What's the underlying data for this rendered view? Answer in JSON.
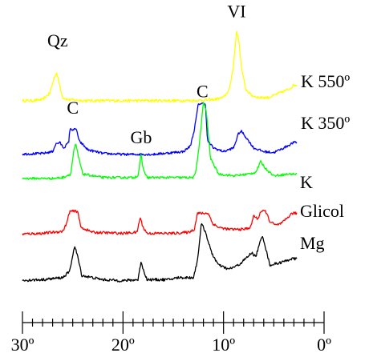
{
  "chart_data": {
    "type": "line",
    "title": "",
    "xlabel": "",
    "ylabel": "",
    "x_reversed": true,
    "xlim": [
      30,
      0
    ],
    "x_ticks": [
      {
        "value": 30,
        "label": "30º"
      },
      {
        "value": 20,
        "label": "20º"
      },
      {
        "value": 10,
        "label": "10º"
      },
      {
        "value": 0,
        "label": "0º"
      }
    ],
    "x_minor_tick_step": 1,
    "series": [
      {
        "name": "K 550º",
        "color": "#ffff00",
        "baseline": 0.5,
        "points": [
          [
            31,
            0.5
          ],
          [
            29,
            0.5
          ],
          [
            28,
            1
          ],
          [
            27.3,
            4
          ],
          [
            26.8,
            12
          ],
          [
            26.6,
            14
          ],
          [
            26.3,
            8
          ],
          [
            26,
            2
          ],
          [
            25.5,
            1
          ],
          [
            24,
            0.5
          ],
          [
            20,
            0.5
          ],
          [
            16,
            0.5
          ],
          [
            13,
            0.5
          ],
          [
            11,
            1
          ],
          [
            10,
            2
          ],
          [
            9.4,
            6
          ],
          [
            9.0,
            18
          ],
          [
            8.7,
            34
          ],
          [
            8.5,
            30
          ],
          [
            8.2,
            16
          ],
          [
            7.8,
            6
          ],
          [
            7.2,
            3
          ],
          [
            6.5,
            2
          ],
          [
            5.5,
            2
          ],
          [
            4.5,
            4
          ],
          [
            3.5,
            6
          ],
          [
            3,
            8
          ]
        ]
      },
      {
        "name": "K 350º",
        "color": "#0000ff",
        "baseline": 0.5,
        "points": [
          [
            31,
            0.5
          ],
          [
            28,
            1
          ],
          [
            27,
            2
          ],
          [
            26.7,
            6
          ],
          [
            26.3,
            7
          ],
          [
            25.9,
            4
          ],
          [
            25.4,
            7
          ],
          [
            25.3,
            14
          ],
          [
            24.6,
            14
          ],
          [
            24.4,
            8
          ],
          [
            23.5,
            3
          ],
          [
            22,
            1
          ],
          [
            20,
            0.5
          ],
          [
            17,
            0.5
          ],
          [
            15,
            1.5
          ],
          [
            14,
            2
          ],
          [
            13.3,
            5
          ],
          [
            12.9,
            14
          ],
          [
            12.5,
            28
          ],
          [
            12.3,
            28
          ],
          [
            11.8,
            28
          ],
          [
            11.6,
            8
          ],
          [
            11,
            4
          ],
          [
            10,
            2
          ],
          [
            9,
            4
          ],
          [
            8.5,
            12
          ],
          [
            8.2,
            13
          ],
          [
            7.8,
            10
          ],
          [
            7,
            4
          ],
          [
            6,
            2
          ],
          [
            5,
            1.5
          ],
          [
            4,
            4
          ],
          [
            3,
            7
          ]
        ]
      },
      {
        "name": "K",
        "color": "#00ff00",
        "baseline": 0.5,
        "points": [
          [
            31,
            0.5
          ],
          [
            27,
            0.5
          ],
          [
            26,
            1
          ],
          [
            25.2,
            3
          ],
          [
            24.9,
            16
          ],
          [
            24.7,
            20
          ],
          [
            24.4,
            12
          ],
          [
            24,
            3
          ],
          [
            22,
            1
          ],
          [
            19,
            1
          ],
          [
            18.5,
            2
          ],
          [
            18.2,
            14
          ],
          [
            18,
            6
          ],
          [
            17.6,
            1
          ],
          [
            15,
            1
          ],
          [
            13,
            1
          ],
          [
            12.8,
            3
          ],
          [
            12.4,
            20
          ],
          [
            12.0,
            44
          ],
          [
            11.7,
            38
          ],
          [
            11.3,
            12
          ],
          [
            10.5,
            3
          ],
          [
            9,
            2
          ],
          [
            7.5,
            3
          ],
          [
            6.8,
            4
          ],
          [
            6.3,
            10
          ],
          [
            5.8,
            6
          ],
          [
            5,
            2
          ],
          [
            3.5,
            3
          ]
        ]
      },
      {
        "name": "Glicol",
        "color": "#ff0000",
        "baseline": 0.5,
        "points": [
          [
            31,
            0.5
          ],
          [
            28,
            1
          ],
          [
            26,
            2
          ],
          [
            25.6,
            6
          ],
          [
            25.3,
            12
          ],
          [
            25.0,
            12
          ],
          [
            24.5,
            12
          ],
          [
            24.2,
            4
          ],
          [
            23,
            1.5
          ],
          [
            20,
            1
          ],
          [
            18.6,
            1.5
          ],
          [
            18.3,
            9
          ],
          [
            18,
            4
          ],
          [
            17.6,
            1
          ],
          [
            15,
            1
          ],
          [
            13.5,
            1.5
          ],
          [
            12.9,
            3
          ],
          [
            12.6,
            11
          ],
          [
            12.3,
            11
          ],
          [
            11.5,
            11
          ],
          [
            11.1,
            6
          ],
          [
            10.5,
            4
          ],
          [
            9.5,
            3
          ],
          [
            8,
            3
          ],
          [
            7.3,
            4
          ],
          [
            7.0,
            10
          ],
          [
            6.6,
            8
          ],
          [
            6.3,
            12
          ],
          [
            5.8,
            12
          ],
          [
            5.4,
            7
          ],
          [
            4.8,
            5
          ],
          [
            4.2,
            6
          ],
          [
            3.6,
            9
          ],
          [
            3.2,
            11
          ]
        ]
      },
      {
        "name": "Mg",
        "color": "#000000",
        "baseline": 0.5,
        "points": [
          [
            31,
            0.5
          ],
          [
            28,
            1
          ],
          [
            26,
            2
          ],
          [
            25.3,
            5
          ],
          [
            25.0,
            13
          ],
          [
            24.8,
            17
          ],
          [
            24.5,
            12
          ],
          [
            24.1,
            3
          ],
          [
            22,
            1
          ],
          [
            20,
            0.5
          ],
          [
            18.5,
            1
          ],
          [
            18.2,
            10
          ],
          [
            18.0,
            6
          ],
          [
            17.6,
            1
          ],
          [
            15.5,
            1
          ],
          [
            14.5,
            2
          ],
          [
            13,
            2
          ],
          [
            12.6,
            10
          ],
          [
            12.2,
            28
          ],
          [
            11.8,
            24
          ],
          [
            11.2,
            14
          ],
          [
            10.5,
            8
          ],
          [
            9.5,
            6
          ],
          [
            8.5,
            8
          ],
          [
            7.6,
            12
          ],
          [
            7.2,
            14
          ],
          [
            6.8,
            12
          ],
          [
            6.3,
            20
          ],
          [
            6.1,
            22
          ],
          [
            5.8,
            16
          ],
          [
            5.4,
            8
          ],
          [
            4.5,
            9
          ],
          [
            3.8,
            10
          ],
          [
            3.3,
            11
          ]
        ]
      }
    ],
    "annotations": [
      {
        "text": "Qz",
        "x": 26.5,
        "series": "K 550º"
      },
      {
        "text": "VI",
        "x": 8.7,
        "series": "K 550º"
      },
      {
        "text": "C",
        "x": 25.0,
        "series": "K 350º"
      },
      {
        "text": "C",
        "x": 12.1,
        "series": "K 350º"
      },
      {
        "text": "Gb",
        "x": 18.2,
        "series": "K"
      }
    ]
  }
}
